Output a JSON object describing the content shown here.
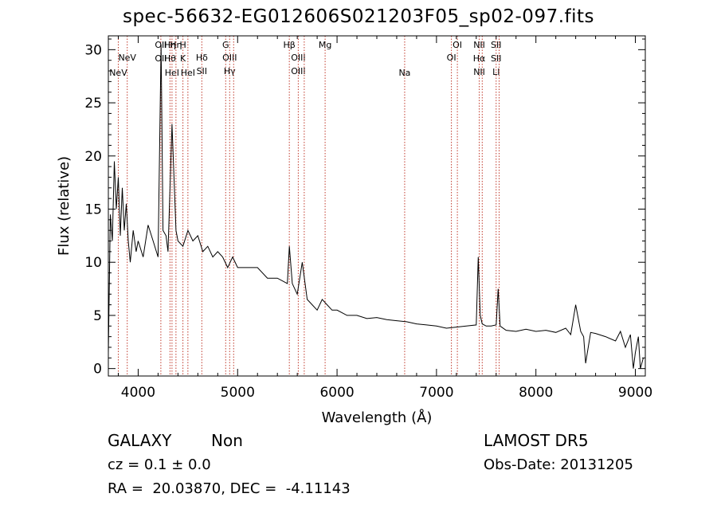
{
  "chart_data": {
    "type": "line",
    "title": "spec-56632-EG012606S021203F05_sp02-097.fits",
    "xlabel": "Wavelength (Å)",
    "ylabel": "Flux (relative)",
    "xlim": [
      3700,
      9100
    ],
    "ylim": [
      -0.7,
      31.3
    ],
    "xticks": [
      4000,
      5000,
      6000,
      7000,
      8000,
      9000
    ],
    "yticks": [
      0,
      5,
      10,
      15,
      20,
      25,
      30
    ],
    "grid": false,
    "line_color": "#000000",
    "line_marker_color": "#c0392b",
    "series": [
      {
        "x": [
          3700,
          3720,
          3740,
          3760,
          3780,
          3800,
          3820,
          3840,
          3860,
          3880,
          3900,
          3920,
          3950,
          3980,
          4000,
          4050,
          4100,
          4150,
          4200,
          4230,
          4250,
          4280,
          4300,
          4340,
          4380,
          4400,
          4450,
          4500,
          4550,
          4600,
          4650,
          4700,
          4750,
          4800,
          4850,
          4900,
          4950,
          5000,
          5100,
          5200,
          5300,
          5400,
          5500,
          5520,
          5550,
          5600,
          5650,
          5700,
          5750,
          5800,
          5850,
          5900,
          5950,
          6000,
          6100,
          6200,
          6300,
          6400,
          6500,
          6600,
          6700,
          6800,
          6900,
          7000,
          7100,
          7200,
          7300,
          7400,
          7420,
          7440,
          7460,
          7480,
          7500,
          7550,
          7600,
          7620,
          7640,
          7700,
          7800,
          7900,
          8000,
          8100,
          8200,
          8300,
          8350,
          8400,
          8450,
          8480,
          8500,
          8550,
          8600,
          8700,
          8800,
          8850,
          8900,
          8950,
          8980,
          9000,
          9030,
          9050,
          9080
        ],
        "values": [
          1.5,
          14.5,
          12.0,
          19.5,
          15.0,
          18.0,
          12.5,
          17.0,
          13.0,
          15.5,
          12.0,
          10.0,
          13.0,
          11.0,
          12.0,
          10.5,
          13.5,
          12.0,
          10.5,
          30.5,
          13.0,
          12.5,
          11.0,
          23.0,
          13.0,
          12.0,
          11.5,
          13.0,
          12.0,
          12.5,
          11.0,
          11.5,
          10.5,
          11.0,
          10.5,
          9.5,
          10.5,
          9.5,
          9.5,
          9.5,
          8.5,
          8.5,
          8.0,
          11.5,
          8.0,
          7.0,
          10.0,
          6.5,
          6.0,
          5.5,
          6.5,
          6.0,
          5.5,
          5.5,
          5.0,
          5.0,
          4.7,
          4.8,
          4.6,
          4.5,
          4.4,
          4.2,
          4.1,
          4.0,
          3.8,
          3.9,
          4.0,
          4.1,
          10.5,
          5.0,
          4.2,
          4.1,
          4.0,
          4.0,
          4.1,
          7.5,
          4.0,
          3.6,
          3.5,
          3.7,
          3.5,
          3.6,
          3.4,
          3.8,
          3.2,
          6.0,
          3.5,
          3.0,
          0.5,
          3.4,
          3.3,
          3.0,
          2.6,
          3.5,
          2.0,
          3.2,
          0.0,
          1.5,
          3.0,
          0.0,
          1.0
        ]
      }
    ],
    "lines": [
      {
        "x": 3800,
        "labels": [
          "NeV"
        ],
        "row": 3
      },
      {
        "x": 3890,
        "labels": [
          "NeV"
        ],
        "row": 2
      },
      {
        "x": 4228,
        "labels": [
          "OII",
          "OII"
        ],
        "row": 1
      },
      {
        "x": 4320,
        "labels": [
          "Hη",
          "Hθ"
        ],
        "row": 1
      },
      {
        "x": 4340,
        "labels": [
          "HeI"
        ],
        "row": 3
      },
      {
        "x": 4380,
        "labels": [
          "Hη"
        ],
        "row": 1
      },
      {
        "x": 4450,
        "labels": [
          "H",
          "K"
        ],
        "row": 1
      },
      {
        "x": 4500,
        "labels": [
          "HeI"
        ],
        "row": 3
      },
      {
        "x": 4640,
        "labels": [
          "Hδ",
          "SII"
        ],
        "row": 2
      },
      {
        "x": 4880,
        "labels": [
          "G"
        ],
        "row": 1
      },
      {
        "x": 4920,
        "labels": [
          "OIII",
          "Hγ"
        ],
        "row": 2
      },
      {
        "x": 4960,
        "labels": [],
        "row": 0
      },
      {
        "x": 5520,
        "labels": [
          "Hβ"
        ],
        "row": 1
      },
      {
        "x": 5610,
        "labels": [
          "OIII",
          "OIII"
        ],
        "row": 2
      },
      {
        "x": 5670,
        "labels": [],
        "row": 0
      },
      {
        "x": 5880,
        "labels": [
          "Mg"
        ],
        "row": 1
      },
      {
        "x": 6680,
        "labels": [
          "Na"
        ],
        "row": 3
      },
      {
        "x": 7150,
        "labels": [
          "OI"
        ],
        "row": 2
      },
      {
        "x": 7210,
        "labels": [
          "OI"
        ],
        "row": 1
      },
      {
        "x": 7430,
        "labels": [
          "NII",
          "Hα",
          "NII"
        ],
        "row": 1
      },
      {
        "x": 7460,
        "labels": [],
        "row": 0
      },
      {
        "x": 7600,
        "labels": [
          "SII",
          "SII",
          "LI"
        ],
        "row": 1
      },
      {
        "x": 7630,
        "labels": [],
        "row": 0
      }
    ]
  },
  "info": {
    "class": "GALAXY",
    "subclass": "Non",
    "survey": "LAMOST DR5",
    "cz": "cz = 0.1 ± 0.0",
    "obs_date": "Obs-Date: 20131205",
    "radec": "RA =  20.03870, DEC =  -4.11143"
  }
}
